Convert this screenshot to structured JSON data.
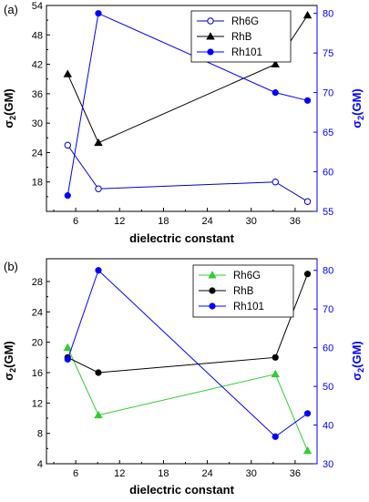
{
  "colors": {
    "axis": "#000000",
    "right_axis": "#0000ff"
  },
  "chart_data": [
    {
      "type": "line",
      "panel_label": "(a)",
      "xlabel": "dielectric constant",
      "ylabel_left": {
        "sym": "σ",
        "sub": "2",
        "rest": "(GM)"
      },
      "ylabel_right": {
        "sym": "σ",
        "sub": "2",
        "rest": "(GM)"
      },
      "xlim": [
        2,
        39
      ],
      "xticks": [
        6,
        12,
        18,
        24,
        30,
        36
      ],
      "ylim_left": [
        12,
        54
      ],
      "yticks_left": [
        18,
        24,
        30,
        36,
        42,
        48,
        54
      ],
      "ylim_right": [
        55,
        81
      ],
      "yticks_right": [
        55,
        60,
        65,
        70,
        75,
        80
      ],
      "legend_position": "top-center",
      "series": [
        {
          "name": "Rh6G",
          "axis": "left",
          "color": "#0000cc",
          "marker": "circle-open",
          "x": [
            4.9,
            9.1,
            33.3,
            37.7
          ],
          "y": [
            25.5,
            16.6,
            18.0,
            14.0
          ]
        },
        {
          "name": "RhB",
          "axis": "left",
          "color": "#000000",
          "marker": "triangle",
          "x": [
            4.9,
            9.1,
            33.3,
            37.7
          ],
          "y": [
            40.0,
            26.0,
            42.0,
            52.0
          ]
        },
        {
          "name": "Rh101",
          "axis": "right",
          "color": "#0000ff",
          "marker": "circle",
          "x": [
            4.9,
            9.1,
            33.3,
            37.7
          ],
          "y": [
            57.0,
            80.0,
            70.0,
            69.0
          ]
        }
      ]
    },
    {
      "type": "line",
      "panel_label": "(b)",
      "xlabel": "dielectric constant",
      "ylabel_left": {
        "sym": "σ",
        "sub": "2",
        "rest": "(GM)"
      },
      "ylabel_right": {
        "sym": "σ",
        "sub": "2",
        "rest": "(GM)"
      },
      "xlim": [
        2,
        39
      ],
      "xticks": [
        6,
        12,
        18,
        24,
        30,
        36
      ],
      "ylim_left": [
        4,
        31
      ],
      "yticks_left": [
        4,
        8,
        12,
        16,
        20,
        24,
        28
      ],
      "ylim_right": [
        30,
        83
      ],
      "yticks_right": [
        30,
        40,
        50,
        60,
        70,
        80
      ],
      "legend_position": "top-center",
      "series": [
        {
          "name": "Rh6G",
          "axis": "left",
          "color": "#33cc33",
          "marker": "triangle",
          "x": [
            4.9,
            9.1,
            33.3,
            37.7
          ],
          "y": [
            19.3,
            10.4,
            15.8,
            5.7
          ]
        },
        {
          "name": "RhB",
          "axis": "left",
          "color": "#000000",
          "marker": "circle",
          "x": [
            4.9,
            9.1,
            33.3,
            37.7
          ],
          "y": [
            18.0,
            16.0,
            18.0,
            29.0
          ]
        },
        {
          "name": "Rh101",
          "axis": "right",
          "color": "#0000ff",
          "marker": "circle",
          "x": [
            4.9,
            9.1,
            33.3,
            37.7
          ],
          "y": [
            57.0,
            80.0,
            37.0,
            43.0
          ]
        }
      ]
    }
  ]
}
